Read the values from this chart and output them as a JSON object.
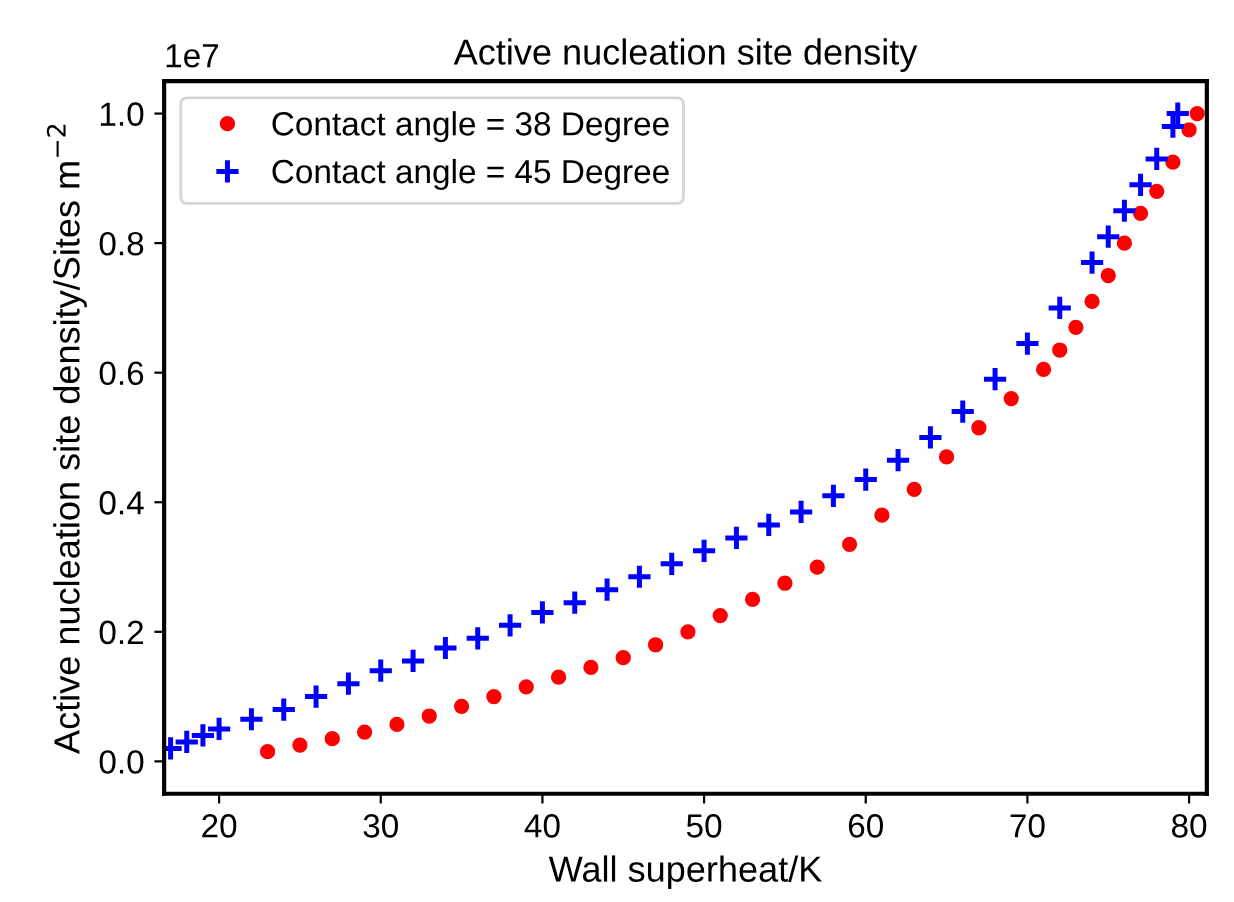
{
  "chart_data": {
    "type": "scatter",
    "title": "Active nucleation site density",
    "xlabel": "Wall superheat/K",
    "ylabel": "Active nucleation site density/Sites m$^{−2}$",
    "annotations": [
      "1e7"
    ],
    "xlim": [
      16.6,
      81.1
    ],
    "ylim": [
      -0.05,
      1.05
    ],
    "xticks": [
      20,
      30,
      40,
      50,
      60,
      70,
      80
    ],
    "yticks": [
      {
        "value": 0,
        "label": "0.0"
      },
      0.2,
      0.4,
      0.6,
      0.8,
      {
        "value": 1,
        "label": "1.0"
      }
    ],
    "grid": false,
    "legend": "top left",
    "series": [
      {
        "name": "Contact angle = 38 Degree",
        "color": "#ff0000",
        "marker": "circle",
        "x": [
          23,
          25,
          27,
          29,
          31,
          33,
          35,
          37,
          39,
          41,
          43,
          45,
          47,
          49,
          51,
          53,
          55,
          57,
          59,
          61,
          63,
          65,
          67,
          69,
          71,
          72,
          73,
          74,
          75,
          76,
          77,
          78,
          79,
          80,
          80.5
        ],
        "values": [
          0.015,
          0.025,
          0.035,
          0.045,
          0.057,
          0.07,
          0.085,
          0.1,
          0.115,
          0.13,
          0.145,
          0.16,
          0.18,
          0.2,
          0.225,
          0.25,
          0.275,
          0.3,
          0.335,
          0.38,
          0.42,
          0.47,
          0.515,
          0.56,
          0.605,
          0.635,
          0.67,
          0.71,
          0.75,
          0.8,
          0.846,
          0.88,
          0.925,
          0.975,
          1.0
        ]
      },
      {
        "name": "Contact angle = 45 Degree",
        "color": "#0000ff",
        "marker": "cross",
        "x": [
          17,
          18,
          19,
          20,
          22,
          24,
          26,
          28,
          30,
          32,
          34,
          36,
          38,
          40,
          42,
          44,
          46,
          48,
          50,
          52,
          54,
          56,
          58,
          60,
          62,
          64,
          66,
          68,
          70,
          72,
          74,
          75,
          76,
          77,
          78,
          79,
          79.3
        ],
        "values": [
          0.02,
          0.03,
          0.04,
          0.05,
          0.065,
          0.08,
          0.1,
          0.12,
          0.14,
          0.155,
          0.175,
          0.19,
          0.21,
          0.23,
          0.245,
          0.265,
          0.285,
          0.305,
          0.325,
          0.345,
          0.365,
          0.385,
          0.41,
          0.435,
          0.465,
          0.5,
          0.54,
          0.59,
          0.645,
          0.7,
          0.77,
          0.81,
          0.85,
          0.89,
          0.93,
          0.98,
          1.0
        ]
      }
    ]
  }
}
